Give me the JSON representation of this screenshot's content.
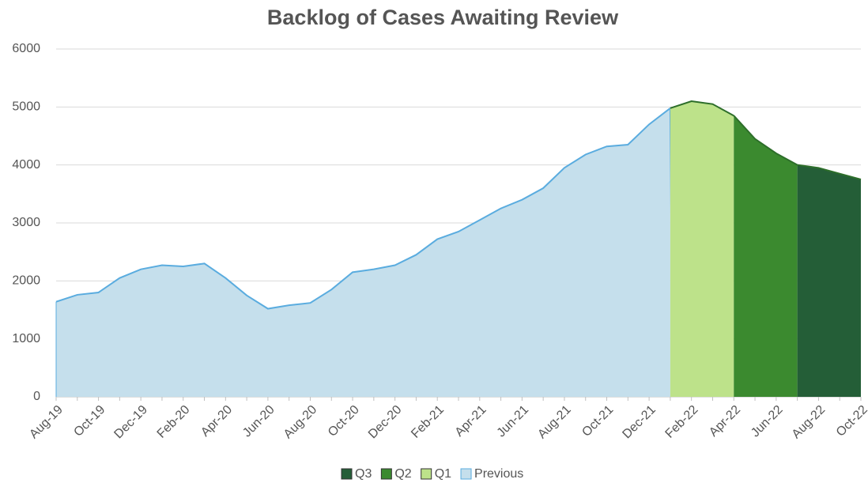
{
  "chart_data": {
    "type": "area",
    "title": "Backlog of Cases Awaiting Review",
    "categories": [
      "Aug-19",
      null,
      "Oct-19",
      null,
      "Dec-19",
      null,
      "Feb-20",
      null,
      "Apr-20",
      null,
      "Jun-20",
      null,
      "Aug-20",
      null,
      "Oct-20",
      null,
      "Dec-20",
      null,
      "Feb-21",
      null,
      "Apr-21",
      null,
      "Jun-21",
      null,
      "Aug-21",
      null,
      "Oct-21",
      null,
      "Dec-21",
      null,
      "Feb-22",
      null,
      "Apr-22",
      null,
      "Jun-22",
      null,
      "Aug-22",
      null,
      "Oct-22"
    ],
    "series": [
      {
        "name": "Q3",
        "color": "#245e37",
        "values": [
          null,
          null,
          null,
          null,
          null,
          null,
          null,
          null,
          null,
          null,
          null,
          null,
          null,
          null,
          null,
          null,
          null,
          null,
          null,
          null,
          null,
          null,
          null,
          null,
          null,
          null,
          null,
          null,
          null,
          null,
          null,
          null,
          null,
          null,
          null,
          4000,
          3950,
          3850,
          3750
        ]
      },
      {
        "name": "Q2",
        "color": "#3b8a2f",
        "values": [
          null,
          null,
          null,
          null,
          null,
          null,
          null,
          null,
          null,
          null,
          null,
          null,
          null,
          null,
          null,
          null,
          null,
          null,
          null,
          null,
          null,
          null,
          null,
          null,
          null,
          null,
          null,
          null,
          null,
          null,
          null,
          null,
          4850,
          4450,
          4200,
          4000,
          null,
          null,
          null
        ]
      },
      {
        "name": "Q1",
        "color": "#bde28a",
        "values": [
          null,
          null,
          null,
          null,
          null,
          null,
          null,
          null,
          null,
          null,
          null,
          null,
          null,
          null,
          null,
          null,
          null,
          null,
          null,
          null,
          null,
          null,
          null,
          null,
          null,
          null,
          null,
          null,
          null,
          4980,
          5100,
          5050,
          4850,
          null,
          null,
          null,
          null,
          null,
          null
        ]
      },
      {
        "name": "Previous",
        "color": "#c5dfec",
        "values": [
          1640,
          1760,
          1800,
          2050,
          2200,
          2270,
          2250,
          2300,
          2050,
          1750,
          1520,
          1580,
          1620,
          1850,
          2150,
          2200,
          2270,
          2450,
          2720,
          2850,
          3050,
          3250,
          3400,
          3600,
          3950,
          4180,
          4320,
          4350,
          4700,
          4980,
          null,
          null,
          null,
          null,
          null,
          null,
          null,
          null,
          null
        ]
      }
    ],
    "ylim": [
      0,
      6000
    ],
    "yticks": [
      0,
      1000,
      2000,
      3000,
      4000,
      5000,
      6000
    ],
    "grid": true,
    "legend": "bottom"
  }
}
